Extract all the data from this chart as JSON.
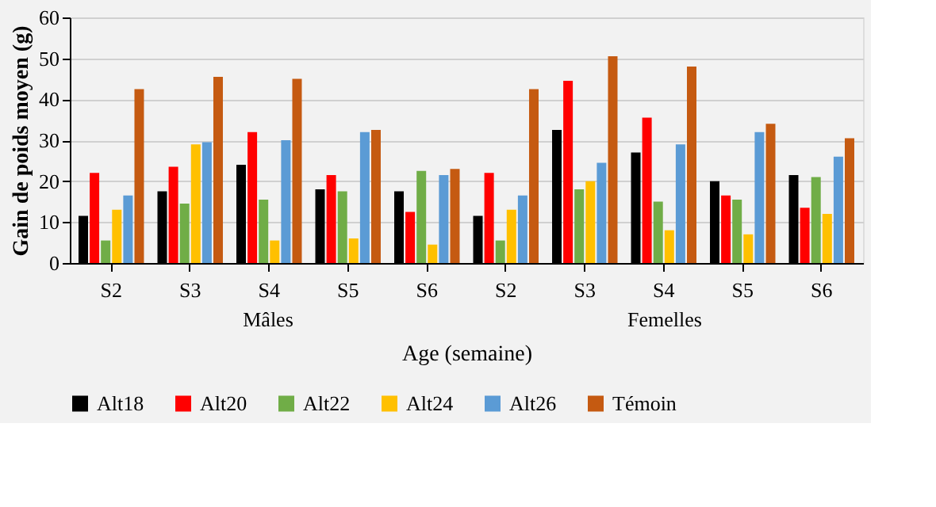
{
  "chart_data": {
    "type": "bar",
    "ylabel": "Gain de poids moyen (g)",
    "xlabel": "Age (semaine)",
    "categories": [
      "S2",
      "S3",
      "S4",
      "S5",
      "S6",
      "S2",
      "S3",
      "S4",
      "S5",
      "S6"
    ],
    "annotations": [
      "Mâles",
      "Femelles"
    ],
    "series": [
      {
        "name": "Alt18",
        "color": "#000000",
        "values": [
          11.5,
          17.5,
          24,
          18,
          17.5,
          11.5,
          32.5,
          27,
          20,
          21.5
        ]
      },
      {
        "name": "Alt20",
        "color": "#ff0000",
        "values": [
          22,
          23.5,
          32,
          21.5,
          12.5,
          22,
          44.5,
          35.5,
          16.5,
          13.5
        ]
      },
      {
        "name": "Alt22",
        "color": "#70ad47",
        "values": [
          5.5,
          14.5,
          15.5,
          17.5,
          22.5,
          5.5,
          18,
          15,
          15.5,
          21
        ]
      },
      {
        "name": "Alt24",
        "color": "#ffc000",
        "values": [
          13,
          29,
          5.5,
          6,
          4.5,
          13,
          20,
          8,
          7,
          12
        ]
      },
      {
        "name": "Alt26",
        "color": "#5b9bd5",
        "values": [
          16.5,
          29.5,
          30,
          32,
          21.5,
          16.5,
          24.5,
          29,
          32,
          26
        ]
      },
      {
        "name": "Témoin",
        "color": "#c55a11",
        "values": [
          42.5,
          45.5,
          45,
          32.5,
          23,
          42.5,
          50.5,
          48,
          34,
          30.5
        ]
      }
    ],
    "ylim": [
      0,
      60
    ],
    "yticks": [
      0,
      10,
      20,
      30,
      40,
      50,
      60
    ],
    "grid": "y",
    "legend": "bottom"
  }
}
